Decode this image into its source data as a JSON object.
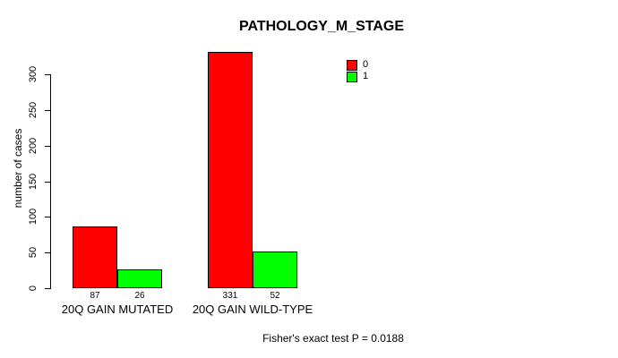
{
  "chart_data": {
    "type": "bar",
    "title": "PATHOLOGY_M_STAGE",
    "ylabel": "number of cases",
    "xlabel": "",
    "categories": [
      "20Q GAIN MUTATED",
      "20Q GAIN WILD-TYPE"
    ],
    "series": [
      {
        "name": "0",
        "color": "#FF0000",
        "values": [
          87,
          331
        ]
      },
      {
        "name": "1",
        "color": "#00FF00",
        "values": [
          26,
          52
        ]
      }
    ],
    "value_labels": [
      [
        "87",
        "26"
      ],
      [
        "331",
        "52"
      ]
    ],
    "ylim": [
      0,
      300
    ],
    "yticks": [
      0,
      50,
      100,
      150,
      200,
      250,
      300
    ],
    "grid": false,
    "legend_position": "top-right",
    "legend": {
      "entries": [
        {
          "label": "0",
          "color": "#FF0000"
        },
        {
          "label": "1",
          "color": "#00FF00"
        }
      ]
    },
    "footer": "Fisher's exact test P = 0.0188"
  }
}
